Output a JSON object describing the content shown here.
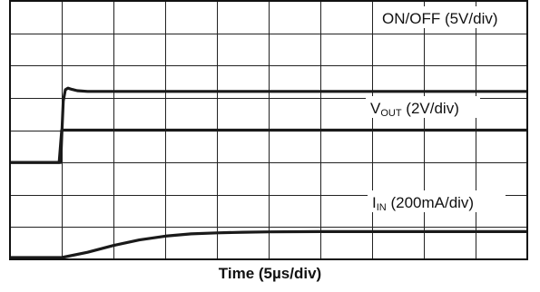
{
  "chart_data": {
    "type": "line",
    "title": "",
    "xlabel": "Time (5µs/div)",
    "ylabel": "",
    "grid": true,
    "x_divisions": 10,
    "y_divisions": 8,
    "x_units": "div",
    "series": [
      {
        "name": "ON/OFF (5V/div)",
        "label_main": "ON/OFF (5V/div)",
        "label_sub": "",
        "label_suffix": "",
        "x": [
          0,
          0.95,
          1.0,
          10
        ],
        "y": [
          1.0,
          1.0,
          2.0,
          2.0
        ]
      },
      {
        "name": "VOUT (2V/div)",
        "label_main": "V",
        "label_sub": "OUT",
        "label_suffix": " (2V/div)",
        "x": [
          0,
          0.98,
          1.0,
          1.03,
          1.07,
          1.12,
          1.2,
          1.3,
          1.5,
          10
        ],
        "y": [
          0,
          0,
          0.8,
          1.9,
          2.25,
          2.3,
          2.26,
          2.22,
          2.2,
          2.2
        ]
      },
      {
        "name": "IIN (200mA/div)",
        "label_main": "I",
        "label_sub": "IN",
        "label_suffix": " (200mA/div)",
        "x": [
          0,
          1.0,
          1.5,
          2.0,
          2.5,
          3.0,
          3.5,
          4.0,
          4.5,
          5.0,
          6.0,
          7.0,
          10.0
        ],
        "y": [
          0,
          0,
          0.22,
          0.43,
          0.6,
          0.72,
          0.79,
          0.82,
          0.84,
          0.85,
          0.86,
          0.86,
          0.86
        ]
      }
    ]
  }
}
